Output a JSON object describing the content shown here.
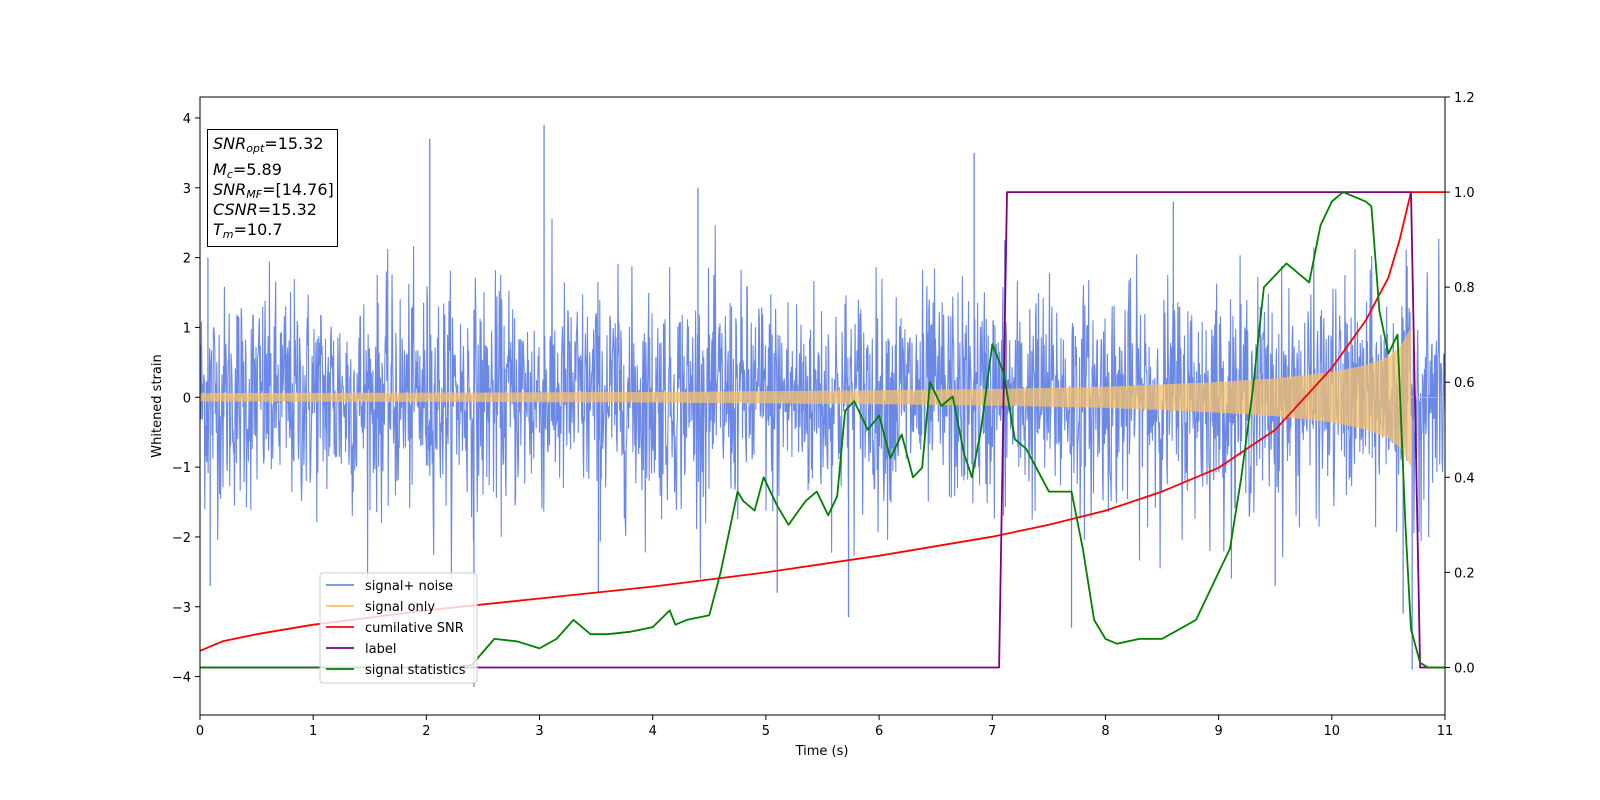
{
  "chart_data": {
    "type": "line",
    "xlabel": "Time (s)",
    "ylabel": "Whitened strain",
    "xlim": [
      0,
      11
    ],
    "ylim": [
      -4.55,
      4.3
    ],
    "y2lim": [
      -0.1,
      1.2
    ],
    "x_ticks": [
      "0",
      "1",
      "2",
      "3",
      "4",
      "5",
      "6",
      "7",
      "8",
      "9",
      "10",
      "11"
    ],
    "y_ticks": [
      "4",
      "3",
      "2",
      "1",
      "0",
      "−1",
      "−2",
      "−3",
      "−4"
    ],
    "y2_ticks": [
      "1.2",
      "1.0",
      "0.8",
      "0.6",
      "0.4",
      "0.2",
      "0.0"
    ],
    "legend_position": "lower-left",
    "series": [
      {
        "name": "signal+ noise",
        "color": "#6b88e6",
        "axis": "left",
        "envelope_description": "dense noisy trace, roughly ±2 with spikes to ±3.9",
        "spike_points": [
          [
            0.07,
            2.0
          ],
          [
            0.09,
            -2.7
          ],
          [
            2.03,
            3.7
          ],
          [
            2.42,
            -4.15
          ],
          [
            3.04,
            3.9
          ],
          [
            3.52,
            -2.8
          ],
          [
            4.4,
            3.0
          ],
          [
            5.1,
            -2.8
          ],
          [
            5.73,
            -3.15
          ],
          [
            6.84,
            3.5
          ],
          [
            7.11,
            2.25
          ],
          [
            7.7,
            -3.3
          ],
          [
            8.6,
            2.8
          ],
          [
            9.5,
            -2.7
          ],
          [
            10.63,
            -3.1
          ],
          [
            10.71,
            -3.9
          ]
        ]
      },
      {
        "name": "signal only",
        "color": "#f5c06a",
        "axis": "left",
        "envelope": {
          "x": [
            0,
            2,
            4,
            6,
            7,
            8,
            9,
            9.5,
            10,
            10.3,
            10.5,
            10.6,
            10.65,
            10.7
          ],
          "amplitude": [
            0.06,
            0.065,
            0.075,
            0.1,
            0.12,
            0.15,
            0.22,
            0.27,
            0.36,
            0.46,
            0.58,
            0.72,
            0.85,
            1.0
          ]
        }
      },
      {
        "name": "cumilative SNR",
        "color": "#ff0000",
        "axis": "right",
        "x": [
          0,
          0.2,
          0.5,
          1,
          2,
          3,
          4,
          5,
          6,
          7,
          7.5,
          8,
          8.5,
          9,
          9.5,
          10,
          10.3,
          10.5,
          10.6,
          10.7,
          11
        ],
        "values": [
          0.035,
          0.055,
          0.07,
          0.09,
          0.12,
          0.145,
          0.17,
          0.2,
          0.235,
          0.275,
          0.3,
          0.33,
          0.37,
          0.42,
          0.5,
          0.63,
          0.73,
          0.82,
          0.9,
          1.0,
          1.0
        ]
      },
      {
        "name": "label",
        "color": "#800080",
        "axis": "right",
        "x": [
          0,
          7.06,
          7.13,
          10.7,
          10.78,
          11
        ],
        "values": [
          0,
          0,
          1,
          1,
          0,
          0
        ]
      },
      {
        "name": "signal statistics",
        "color": "#008000",
        "axis": "right",
        "x": [
          0,
          2.2,
          2.4,
          2.6,
          2.8,
          3.0,
          3.15,
          3.3,
          3.45,
          3.6,
          3.8,
          4.0,
          4.15,
          4.2,
          4.3,
          4.5,
          4.6,
          4.75,
          4.8,
          4.9,
          4.98,
          5.1,
          5.2,
          5.35,
          5.45,
          5.55,
          5.63,
          5.7,
          5.78,
          5.9,
          6.0,
          6.1,
          6.2,
          6.3,
          6.38,
          6.45,
          6.55,
          6.65,
          6.75,
          6.82,
          6.9,
          7.0,
          7.1,
          7.2,
          7.3,
          7.5,
          7.7,
          7.8,
          7.9,
          8.0,
          8.1,
          8.3,
          8.5,
          8.8,
          8.9,
          9.0,
          9.1,
          9.2,
          9.3,
          9.4,
          9.6,
          9.8,
          9.9,
          10.0,
          10.1,
          10.2,
          10.3,
          10.35,
          10.42,
          10.5,
          10.58,
          10.65,
          10.7,
          10.78,
          10.85,
          11
        ],
        "values": [
          0,
          0,
          0.005,
          0.06,
          0.055,
          0.04,
          0.06,
          0.1,
          0.07,
          0.07,
          0.075,
          0.085,
          0.12,
          0.09,
          0.1,
          0.11,
          0.2,
          0.37,
          0.35,
          0.33,
          0.4,
          0.34,
          0.3,
          0.35,
          0.37,
          0.32,
          0.36,
          0.54,
          0.56,
          0.5,
          0.53,
          0.44,
          0.49,
          0.4,
          0.42,
          0.6,
          0.55,
          0.57,
          0.45,
          0.4,
          0.5,
          0.68,
          0.62,
          0.48,
          0.46,
          0.37,
          0.37,
          0.25,
          0.1,
          0.06,
          0.05,
          0.06,
          0.06,
          0.1,
          0.15,
          0.2,
          0.25,
          0.4,
          0.58,
          0.8,
          0.85,
          0.81,
          0.93,
          0.98,
          1.0,
          0.99,
          0.98,
          0.97,
          0.75,
          0.66,
          0.7,
          0.3,
          0.08,
          0.01,
          0.0,
          0.0
        ]
      }
    ]
  },
  "infobox": {
    "snr_opt_sym": "SNR",
    "snr_opt_sub": "opt",
    "snr_opt_val": "=15.32",
    "mc_sym": "M",
    "mc_sub": "c",
    "mc_val": "=5.89",
    "snr_mf_sym": "SNR",
    "snr_mf_sub": "MF",
    "snr_mf_val": "=[14.76]",
    "csnr_sym": "CSNR",
    "csnr_val": "=15.32",
    "tm_sym": "T",
    "tm_sub": "m",
    "tm_val": "=10.7"
  }
}
